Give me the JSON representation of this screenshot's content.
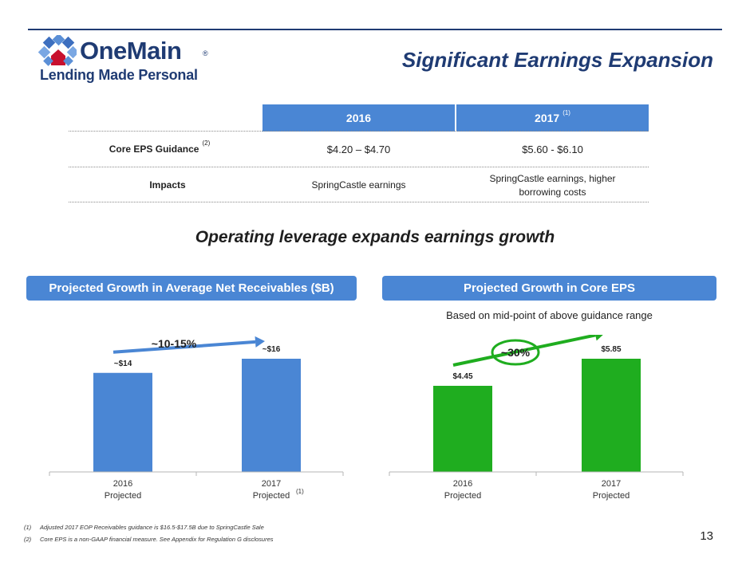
{
  "logo": {
    "wordmark": "OneMain",
    "registered": "®",
    "tagline": "Lending Made Personal"
  },
  "title": "Significant Earnings Expansion",
  "table": {
    "headers": [
      {
        "label": "2016",
        "sup": ""
      },
      {
        "label": "2017",
        "sup": "(1)"
      }
    ],
    "rows": [
      {
        "label": "Core EPS Guidance",
        "label_sup": "(2)",
        "values": [
          "$4.20 – $4.70",
          "$5.60 - $6.10"
        ]
      },
      {
        "label": "Impacts",
        "label_sup": "",
        "values": [
          "SpringCastle earnings",
          "SpringCastle earnings, higher borrowing costs"
        ]
      }
    ]
  },
  "subtitle": "Operating leverage expands earnings growth",
  "left_panel": {
    "banner": "Projected Growth in Average Net Receivables ($B)"
  },
  "right_panel": {
    "banner": "Projected Growth in Core EPS",
    "note": "Based on mid-point of above guidance range"
  },
  "chart_data": [
    {
      "type": "bar",
      "categories": [
        "2016 Projected",
        "2017 Projected"
      ],
      "category_lines": [
        [
          "2016",
          "Projected"
        ],
        [
          "2017",
          "Projected"
        ]
      ],
      "category_sup": [
        "",
        "(1)"
      ],
      "values": [
        14,
        16
      ],
      "data_labels": [
        "~$14",
        "~$16"
      ],
      "growth_label": "~10-15%",
      "growth_circled": false,
      "color": "#4a86d4"
    },
    {
      "type": "bar",
      "categories": [
        "2016 Projected",
        "2017 Projected"
      ],
      "category_lines": [
        [
          "2016",
          "Projected"
        ],
        [
          "2017",
          "Projected"
        ]
      ],
      "category_sup": [
        "",
        ""
      ],
      "values": [
        4.45,
        5.85
      ],
      "data_labels": [
        "$4.45",
        "$5.85"
      ],
      "growth_label": "~30%",
      "growth_circled": true,
      "color": "#1fad1f"
    }
  ],
  "colors": {
    "brand_navy": "#1f3b73",
    "header_blue": "#4a86d4",
    "bar_blue": "#4a86d4",
    "bar_green": "#1fad1f",
    "logo_red": "#c8102e"
  },
  "footnotes": [
    {
      "num": "(1)",
      "text": "Adjusted 2017 EOP Receivables guidance is $16.5-$17.5B due to SpringCastle Sale"
    },
    {
      "num": "(2)",
      "text": "Core EPS is a non-GAAP financial measure. See Appendix for Regulation G disclosures"
    }
  ],
  "page_number": "13"
}
